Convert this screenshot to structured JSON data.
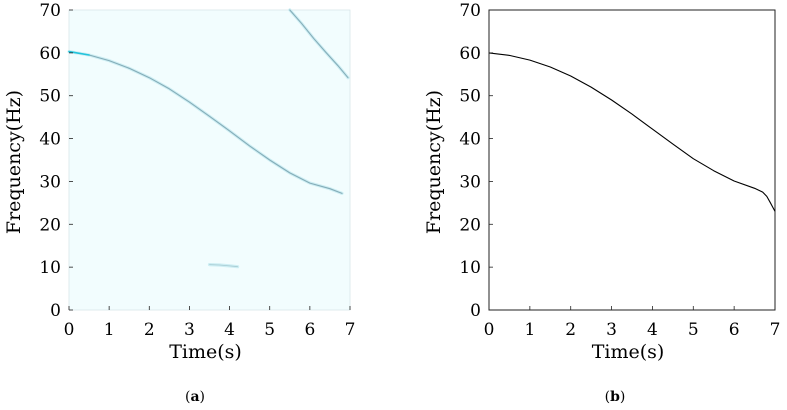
{
  "chart_data": [
    {
      "id": "a",
      "type": "heatmap",
      "panel_label_open": "(",
      "panel_label_letter": "a",
      "panel_label_close": ")",
      "xlabel": "Time(s)",
      "ylabel": "Frequency(Hz)",
      "xlim": [
        0,
        7
      ],
      "ylim": [
        0,
        70
      ],
      "xticks": [
        "0",
        "1",
        "2",
        "3",
        "4",
        "5",
        "6",
        "7"
      ],
      "yticks": [
        "0",
        "10",
        "20",
        "30",
        "40",
        "50",
        "60",
        "70"
      ],
      "grid": false,
      "background_color": "#f2fdfe",
      "ridge_color": "#7fa8b4",
      "accent_color": "#21c4dc",
      "series": [
        {
          "x": [
            0,
            0.5,
            1,
            1.5,
            2,
            2.5,
            3,
            3.5,
            4,
            4.5,
            5,
            5.5,
            6,
            6.5,
            6.8
          ],
          "y": [
            60.3,
            59.5,
            58.2,
            56.4,
            54.2,
            51.6,
            48.5,
            45.2,
            41.8,
            38.3,
            35.0,
            32.0,
            29.6,
            28.3,
            27.2
          ]
        },
        {
          "x": [
            5.5,
            5.8,
            6.1,
            6.4,
            6.7,
            6.95
          ],
          "y": [
            70.0,
            66.8,
            63.3,
            60.1,
            57.0,
            54.2
          ]
        },
        {
          "x": [
            3.5,
            3.75,
            4.0,
            4.2
          ],
          "y": [
            10.6,
            10.5,
            10.3,
            10.1
          ]
        }
      ]
    },
    {
      "id": "b",
      "type": "line",
      "panel_label_open": "(",
      "panel_label_letter": "b",
      "panel_label_close": ")",
      "xlabel": "Time(s)",
      "ylabel": "Frequency(Hz)",
      "xlim": [
        0,
        7
      ],
      "ylim": [
        0,
        70
      ],
      "xticks": [
        "0",
        "1",
        "2",
        "3",
        "4",
        "5",
        "6",
        "7"
      ],
      "yticks": [
        "0",
        "10",
        "20",
        "30",
        "40",
        "50",
        "60",
        "70"
      ],
      "grid": false,
      "line_color": "#000000",
      "series": [
        {
          "x": [
            0,
            0.5,
            1,
            1.5,
            2,
            2.5,
            3,
            3.5,
            4,
            4.5,
            5,
            5.5,
            6,
            6.5,
            6.7,
            6.8,
            6.9,
            7.0
          ],
          "y": [
            60.0,
            59.4,
            58.3,
            56.7,
            54.6,
            52.0,
            49.0,
            45.7,
            42.2,
            38.7,
            35.3,
            32.5,
            30.1,
            28.4,
            27.5,
            26.5,
            24.8,
            23.0
          ]
        }
      ]
    }
  ]
}
